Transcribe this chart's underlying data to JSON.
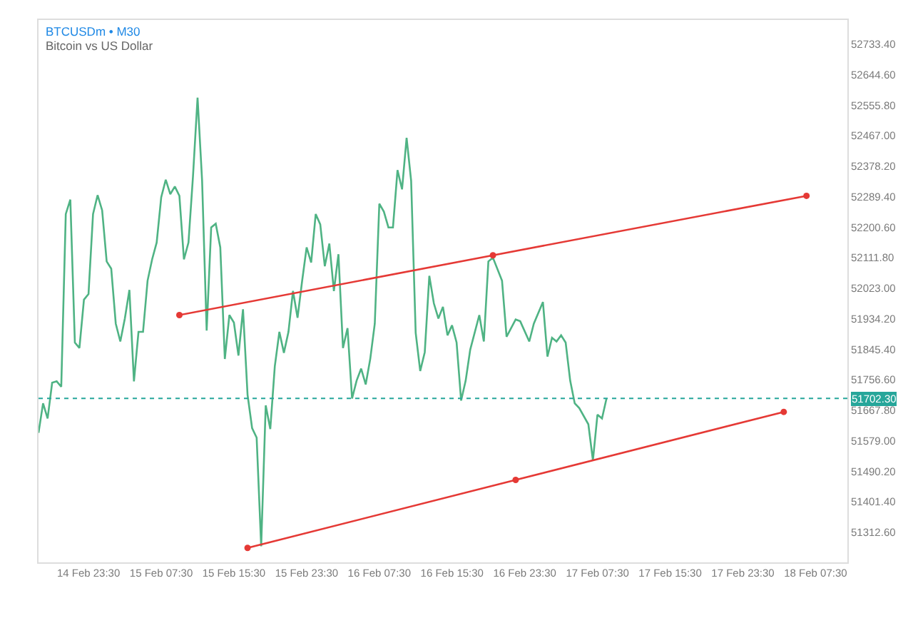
{
  "chart_data": {
    "type": "line",
    "title": "BTCUSDm • M30",
    "subtitle": "Bitcoin vs US Dollar",
    "x": [
      "--02-14T18:00",
      "--02-14T18:30",
      "--02-14T19:00",
      "--02-14T19:30",
      "--02-14T20:00",
      "--02-14T20:30",
      "--02-14T21:00",
      "--02-14T21:30",
      "--02-14T22:00",
      "--02-14T22:30",
      "--02-14T23:00",
      "--02-14T23:30",
      "--02-15T00:00",
      "--02-15T00:30",
      "--02-15T01:00",
      "--02-15T01:30",
      "--02-15T02:00",
      "--02-15T02:30",
      "--02-15T03:00",
      "--02-15T03:30",
      "--02-15T04:00",
      "--02-15T04:30",
      "--02-15T05:00",
      "--02-15T05:30",
      "--02-15T06:00",
      "--02-15T06:30",
      "--02-15T07:00",
      "--02-15T07:30",
      "--02-15T08:00",
      "--02-15T08:30",
      "--02-15T09:00",
      "--02-15T09:30",
      "--02-15T10:00",
      "--02-15T10:30",
      "--02-15T11:00",
      "--02-15T11:30",
      "--02-15T12:00",
      "--02-15T12:30",
      "--02-15T13:00",
      "--02-15T13:30",
      "--02-15T14:00",
      "--02-15T14:30",
      "--02-15T15:00",
      "--02-15T15:30",
      "--02-15T16:00",
      "--02-15T16:30",
      "--02-15T17:00",
      "--02-15T17:30",
      "--02-15T18:00",
      "--02-15T18:30",
      "--02-15T19:00",
      "--02-15T19:30",
      "--02-15T20:00",
      "--02-15T20:30",
      "--02-15T21:00",
      "--02-15T21:30",
      "--02-15T22:00",
      "--02-15T22:30",
      "--02-15T23:00",
      "--02-15T23:30",
      "--02-16T00:00",
      "--02-16T00:30",
      "--02-16T01:00",
      "--02-16T01:30",
      "--02-16T02:00",
      "--02-16T02:30",
      "--02-16T03:00",
      "--02-16T03:30",
      "--02-16T04:00",
      "--02-16T04:30",
      "--02-16T05:00",
      "--02-16T05:30",
      "--02-16T06:00",
      "--02-16T06:30",
      "--02-16T07:00",
      "--02-16T07:30",
      "--02-16T08:00",
      "--02-16T08:30",
      "--02-16T09:00",
      "--02-16T09:30",
      "--02-16T10:00",
      "--02-16T10:30",
      "--02-16T11:00",
      "--02-16T11:30",
      "--02-16T12:00",
      "--02-16T12:30",
      "--02-16T13:00",
      "--02-16T13:30",
      "--02-16T14:00",
      "--02-16T14:30",
      "--02-16T15:00",
      "--02-16T15:30",
      "--02-16T16:00",
      "--02-16T16:30",
      "--02-16T17:00",
      "--02-16T17:30",
      "--02-16T18:30",
      "--02-16T19:00",
      "--02-16T19:30",
      "--02-16T20:00",
      "--02-16T21:00",
      "--02-16T21:30",
      "--02-16T22:30",
      "--02-16T23:00",
      "--02-17T00:00",
      "--02-17T00:30",
      "--02-17T01:30",
      "--02-17T02:00",
      "--02-17T02:30",
      "--02-17T03:00",
      "--02-17T03:30",
      "--02-17T04:00",
      "--02-17T04:30",
      "--02-17T05:00",
      "--02-17T05:30",
      "--02-17T06:30",
      "--02-17T07:00",
      "--02-17T07:30",
      "--02-17T08:00",
      "--02-17T08:30"
    ],
    "series": [
      {
        "color": "#4fb384",
        "values": [
          51602,
          51688,
          51644,
          51748,
          51752,
          51736,
          52239,
          52281,
          51865,
          51849,
          51990,
          52006,
          52239,
          52294,
          52250,
          52101,
          52080,
          51920,
          51868,
          51935,
          52018,
          51752,
          51896,
          51896,
          52045,
          52107,
          52156,
          52288,
          52339,
          52297,
          52319,
          52292,
          52107,
          52156,
          52350,
          52578,
          52336,
          51900,
          52200,
          52211,
          52142,
          51817,
          51945,
          51923,
          51827,
          51962,
          51713,
          51616,
          51588,
          51272,
          51682,
          51613,
          51796,
          51896,
          51835,
          51896,
          52015,
          51937,
          52043,
          52142,
          52098,
          52239,
          52209,
          52087,
          52153,
          52015,
          52122,
          51849,
          51907,
          51702,
          51754,
          51789,
          51743,
          51817,
          51920,
          52269,
          52246,
          52200,
          52200,
          52367,
          52311,
          52461,
          52336,
          51893,
          51782,
          51837,
          52059,
          51979,
          51935,
          51969,
          51886,
          51915,
          51865,
          51696,
          51754,
          51844,
          51945,
          51868,
          52101,
          52112,
          52045,
          51882,
          51932,
          51927,
          51868,
          51920,
          51983,
          51824,
          51879,
          51868,
          51886,
          51865,
          51754,
          51688,
          51674,
          51627,
          51522,
          51655,
          51644,
          51702.3
        ]
      },
      {
        "type": "line",
        "color": "#e53935",
        "marker": "circle",
        "x": [
          "--02-15T09:30",
          "--02-16T20:00",
          "--02-18T06:30"
        ],
        "values": [
          51945,
          52119,
          52292
        ]
      },
      {
        "type": "line",
        "color": "#e53935",
        "marker": "circle",
        "x": [
          "--02-15T17:00",
          "--02-16T22:30",
          "--02-18T04:00"
        ],
        "values": [
          51267,
          51465,
          51663
        ]
      }
    ],
    "xlim": [
      "--02-14T18:00",
      "--02-18T11:00"
    ],
    "xticks": [
      {
        "value": "--02-14T23:30",
        "label": "14 Feb 23:30"
      },
      {
        "value": "--02-15T07:30",
        "label": "15 Feb 07:30"
      },
      {
        "value": "--02-15T15:30",
        "label": "15 Feb 15:30"
      },
      {
        "value": "--02-15T23:30",
        "label": "15 Feb 23:30"
      },
      {
        "value": "--02-16T07:30",
        "label": "16 Feb 07:30"
      },
      {
        "value": "--02-16T15:30",
        "label": "16 Feb 15:30"
      },
      {
        "value": "--02-16T23:30",
        "label": "16 Feb 23:30"
      },
      {
        "value": "--02-17T07:30",
        "label": "17 Feb 07:30"
      },
      {
        "value": "--02-17T15:30",
        "label": "17 Feb 15:30"
      },
      {
        "value": "--02-17T23:30",
        "label": "17 Feb 23:30"
      },
      {
        "value": "--02-18T07:30",
        "label": "18 Feb 07:30"
      }
    ],
    "ylim": [
      51225,
      52804
    ],
    "yticks": [
      {
        "value": 51312.6,
        "label": "51312.60"
      },
      {
        "value": 51401.4,
        "label": "51401.40"
      },
      {
        "value": 51490.2,
        "label": "51490.20"
      },
      {
        "value": 51579,
        "label": "51579.00"
      },
      {
        "value": 51667.8,
        "label": "51667.80"
      },
      {
        "value": 51756.6,
        "label": "51756.60"
      },
      {
        "value": 51845.4,
        "label": "51845.40"
      },
      {
        "value": 51934.2,
        "label": "51934.20"
      },
      {
        "value": 52023,
        "label": "52023.00"
      },
      {
        "value": 52111.8,
        "label": "52111.80"
      },
      {
        "value": 52200.6,
        "label": "52200.60"
      },
      {
        "value": 52289.4,
        "label": "52289.40"
      },
      {
        "value": 52378.2,
        "label": "52378.20"
      },
      {
        "value": 52467,
        "label": "52467.00"
      },
      {
        "value": 52555.8,
        "label": "52555.80"
      },
      {
        "value": 52644.6,
        "label": "52644.60"
      },
      {
        "value": 52733.4,
        "label": "52733.40"
      }
    ],
    "ref_lines": [
      {
        "axis": "y",
        "value": 51702.3,
        "label": "51702.30",
        "color": "#26a69a",
        "line_style": "dotted"
      }
    ]
  }
}
